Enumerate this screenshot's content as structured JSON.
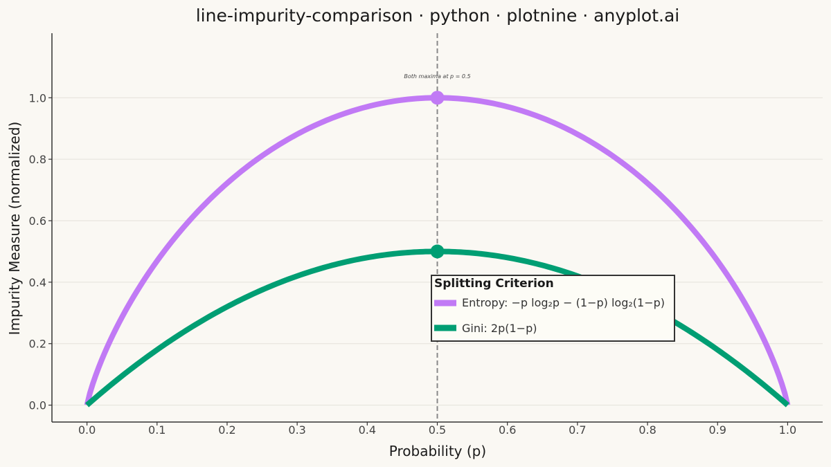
{
  "chart_data": {
    "type": "line",
    "title": "line-impurity-comparison · python · plotnine · anyplot.ai",
    "xlabel": "Probability (p)",
    "ylabel": "Impurity Measure (normalized)",
    "xlim": [
      -0.05,
      1.05
    ],
    "ylim": [
      -0.055,
      1.21
    ],
    "x_ticks": [
      0.0,
      0.1,
      0.2,
      0.3,
      0.4,
      0.5,
      0.6,
      0.7,
      0.8,
      0.9,
      1.0
    ],
    "x_tick_labels": [
      "0.0",
      "0.1",
      "0.2",
      "0.3",
      "0.4",
      "0.5",
      "0.6",
      "0.7",
      "0.8",
      "0.9",
      "1.0"
    ],
    "y_ticks": [
      0.0,
      0.2,
      0.4,
      0.6,
      0.8,
      1.0
    ],
    "y_tick_labels": [
      "0.0",
      "0.2",
      "0.4",
      "0.6",
      "0.8",
      "1.0"
    ],
    "grid": "horizontal",
    "x": [
      0.0,
      0.05,
      0.1,
      0.15,
      0.2,
      0.25,
      0.3,
      0.35,
      0.4,
      0.45,
      0.5,
      0.55,
      0.6,
      0.65,
      0.7,
      0.75,
      0.8,
      0.85,
      0.9,
      0.95,
      1.0
    ],
    "series": [
      {
        "name": "Entropy: −p log₂p − (1−p) log₂(1−p)",
        "color": "#c17af5",
        "values": [
          0.0,
          0.286,
          0.469,
          0.61,
          0.722,
          0.811,
          0.881,
          0.934,
          0.971,
          0.993,
          1.0,
          0.993,
          0.971,
          0.934,
          0.881,
          0.811,
          0.722,
          0.61,
          0.469,
          0.286,
          0.0
        ]
      },
      {
        "name": "Gini: 2p(1−p)",
        "color": "#009e73",
        "values": [
          0.0,
          0.095,
          0.18,
          0.255,
          0.32,
          0.375,
          0.42,
          0.455,
          0.48,
          0.495,
          0.5,
          0.495,
          0.48,
          0.455,
          0.42,
          0.375,
          0.32,
          0.255,
          0.18,
          0.095,
          0.0
        ]
      }
    ],
    "maxima": [
      {
        "x": 0.5,
        "y": 1.0,
        "color": "#c17af5"
      },
      {
        "x": 0.5,
        "y": 0.5,
        "color": "#009e73"
      }
    ],
    "vline": {
      "x": 0.5,
      "style": "dashed",
      "color": "#888888"
    },
    "annotation": {
      "text": "Both maxima at p = 0.5",
      "x": 0.5,
      "y": 1.07
    },
    "legend": {
      "title": "Splitting Criterion",
      "placement": "center-right"
    },
    "background": "#faf8f3"
  }
}
